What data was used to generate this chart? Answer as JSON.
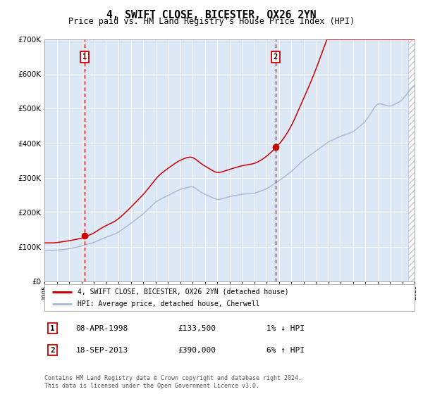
{
  "title": "4, SWIFT CLOSE, BICESTER, OX26 2YN",
  "subtitle": "Price paid vs. HM Land Registry's House Price Index (HPI)",
  "ylim": [
    0,
    700000
  ],
  "yticks": [
    0,
    100000,
    200000,
    300000,
    400000,
    500000,
    600000,
    700000
  ],
  "x_start_year": 1995,
  "x_end_year": 2025,
  "sale1_x": 1998.27,
  "sale1_price": 133500,
  "sale2_x": 2013.72,
  "sale2_price": 390000,
  "hpi_line_color": "#aabbd8",
  "price_line_color": "#cc0000",
  "sale_dot_color": "#cc0000",
  "bg_color": "#dce8f5",
  "grid_color": "#ffffff",
  "vline_color": "#cc0000",
  "legend_entry1": "4, SWIFT CLOSE, BICESTER, OX26 2YN (detached house)",
  "legend_entry2": "HPI: Average price, detached house, Cherwell",
  "table_row1": [
    "1",
    "08-APR-1998",
    "£133,500",
    "1% ↓ HPI"
  ],
  "table_row2": [
    "2",
    "18-SEP-2013",
    "£390,000",
    "6% ↑ HPI"
  ],
  "footnote": "Contains HM Land Registry data © Crown copyright and database right 2024.\nThis data is licensed under the Open Government Licence v3.0."
}
